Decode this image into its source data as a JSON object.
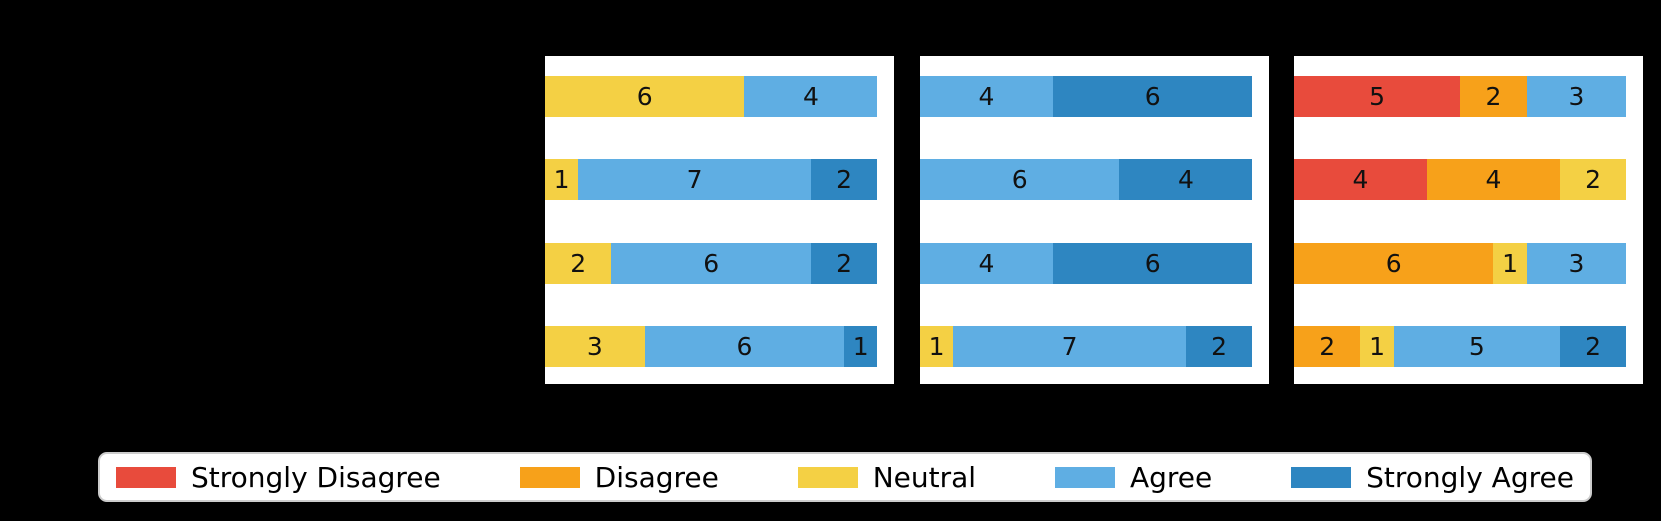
{
  "figure": {
    "background_color": "#000000",
    "panel_background_color": "#ffffff",
    "bar_label_color": "#111111",
    "legend_border_color": "#cccccc"
  },
  "chart_data": {
    "type": "bar",
    "variant": "horizontal-stacked-likert",
    "orientation": "horizontal",
    "grid": false,
    "respondents_per_row": 10,
    "x_max": 10.5,
    "rows_per_panel": 4,
    "levels": [
      "Strongly Disagree",
      "Disagree",
      "Neutral",
      "Agree",
      "Strongly Agree"
    ],
    "colors": {
      "Strongly Disagree": "#e84b3c",
      "Disagree": "#f7a11a",
      "Neutral": "#f4d044",
      "Agree": "#5faee3",
      "Strongly Agree": "#2e86c1"
    },
    "panels": [
      {
        "rows": [
          [
            {
              "level": "Neutral",
              "value": 6
            },
            {
              "level": "Agree",
              "value": 4
            }
          ],
          [
            {
              "level": "Neutral",
              "value": 1
            },
            {
              "level": "Agree",
              "value": 7
            },
            {
              "level": "Strongly Agree",
              "value": 2
            }
          ],
          [
            {
              "level": "Neutral",
              "value": 2
            },
            {
              "level": "Agree",
              "value": 6
            },
            {
              "level": "Strongly Agree",
              "value": 2
            }
          ],
          [
            {
              "level": "Neutral",
              "value": 3
            },
            {
              "level": "Agree",
              "value": 6
            },
            {
              "level": "Strongly Agree",
              "value": 1
            }
          ]
        ]
      },
      {
        "rows": [
          [
            {
              "level": "Agree",
              "value": 4
            },
            {
              "level": "Strongly Agree",
              "value": 6
            }
          ],
          [
            {
              "level": "Agree",
              "value": 6
            },
            {
              "level": "Strongly Agree",
              "value": 4
            }
          ],
          [
            {
              "level": "Agree",
              "value": 4
            },
            {
              "level": "Strongly Agree",
              "value": 6
            }
          ],
          [
            {
              "level": "Neutral",
              "value": 1
            },
            {
              "level": "Agree",
              "value": 7
            },
            {
              "level": "Strongly Agree",
              "value": 2
            }
          ]
        ]
      },
      {
        "rows": [
          [
            {
              "level": "Strongly Disagree",
              "value": 5
            },
            {
              "level": "Disagree",
              "value": 2
            },
            {
              "level": "Agree",
              "value": 3
            }
          ],
          [
            {
              "level": "Strongly Disagree",
              "value": 4
            },
            {
              "level": "Disagree",
              "value": 4
            },
            {
              "level": "Neutral",
              "value": 2
            }
          ],
          [
            {
              "level": "Disagree",
              "value": 6
            },
            {
              "level": "Neutral",
              "value": 1
            },
            {
              "level": "Agree",
              "value": 3
            }
          ],
          [
            {
              "level": "Disagree",
              "value": 2
            },
            {
              "level": "Neutral",
              "value": 1
            },
            {
              "level": "Agree",
              "value": 5
            },
            {
              "level": "Strongly Agree",
              "value": 2
            }
          ]
        ]
      }
    ],
    "legend": {
      "position": "bottom",
      "entries": [
        {
          "label": "Strongly Disagree",
          "color": "#e84b3c"
        },
        {
          "label": "Disagree",
          "color": "#f7a11a"
        },
        {
          "label": "Neutral",
          "color": "#f4d044"
        },
        {
          "label": "Agree",
          "color": "#5faee3"
        },
        {
          "label": "Strongly Agree",
          "color": "#2e86c1"
        }
      ]
    }
  }
}
